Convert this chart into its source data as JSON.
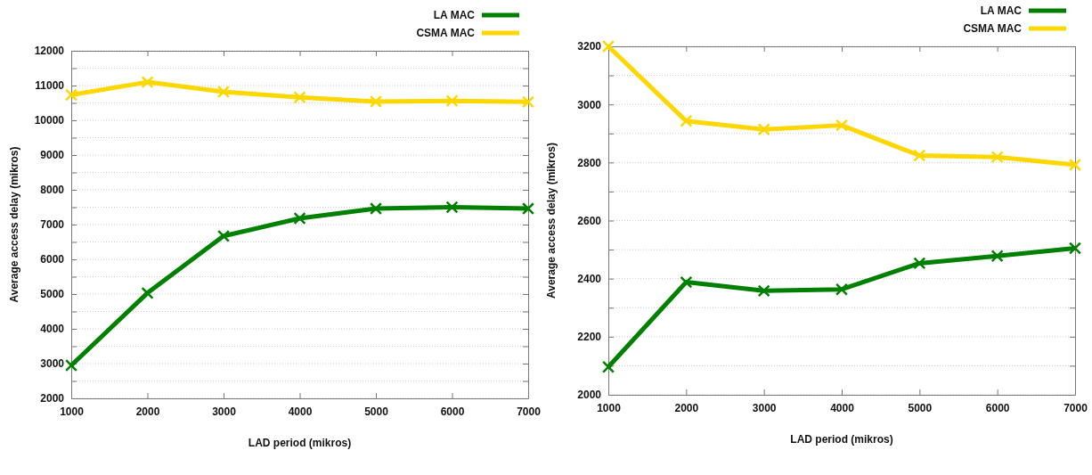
{
  "chart_data": [
    {
      "type": "line",
      "xlabel": "LAD period (mikros)",
      "ylabel": "Average access delay (mikros)",
      "x": [
        1000,
        2000,
        3000,
        4000,
        5000,
        6000,
        7000
      ],
      "xlim": [
        1000,
        7000
      ],
      "xticks": [
        1000,
        2000,
        3000,
        4000,
        5000,
        6000,
        7000
      ],
      "ylim": [
        2000,
        12000
      ],
      "yticks": [
        2000,
        {
          "value": 2500,
          "label": null
        },
        3000,
        {
          "value": 3500,
          "label": null
        },
        4000,
        {
          "value": 4500,
          "label": null
        },
        5000,
        {
          "value": 5500,
          "label": null
        },
        6000,
        {
          "value": 6500,
          "label": null
        },
        7000,
        {
          "value": 7500,
          "label": null
        },
        8000,
        {
          "value": 8500,
          "label": null
        },
        9000,
        {
          "value": 9500,
          "label": null
        },
        10000,
        {
          "value": 10500,
          "label": null
        },
        11000,
        {
          "value": 11500,
          "label": null
        },
        12000
      ],
      "grid": "y",
      "legend": "top right",
      "marker": "cross",
      "line_style": "solid",
      "series": [
        {
          "name": "LA MAC",
          "color": "#008000",
          "values": [
            2950,
            5030,
            6670,
            7180,
            7460,
            7500,
            7460
          ]
        },
        {
          "name": "CSMA MAC",
          "color": "#ffd700",
          "values": [
            10730,
            11100,
            10820,
            10660,
            10540,
            10560,
            10530
          ]
        }
      ]
    },
    {
      "type": "line",
      "xlabel": "LAD period (mikros)",
      "ylabel": "Average access delay (mikros)",
      "x": [
        1000,
        2000,
        3000,
        4000,
        5000,
        6000,
        7000
      ],
      "xlim": [
        1000,
        7000
      ],
      "xticks": [
        1000,
        2000,
        3000,
        4000,
        5000,
        6000,
        7000
      ],
      "ylim": [
        2000,
        3200
      ],
      "yticks": [
        2000,
        {
          "value": 2100,
          "label": null
        },
        2200,
        {
          "value": 2300,
          "label": null
        },
        2400,
        {
          "value": 2500,
          "label": null
        },
        2600,
        {
          "value": 2700,
          "label": null
        },
        2800,
        {
          "value": 2900,
          "label": null
        },
        3000,
        {
          "value": 3100,
          "label": null
        },
        3200
      ],
      "grid": "y",
      "legend": "top right",
      "marker": "cross",
      "line_style": "solid",
      "series": [
        {
          "name": "LA MAC",
          "color": "#008000",
          "values": [
            2096,
            2388,
            2358,
            2363,
            2453,
            2478,
            2505
          ]
        },
        {
          "name": "CSMA MAC",
          "color": "#ffd700",
          "values": [
            3200,
            2943,
            2914,
            2928,
            2824,
            2819,
            2792
          ]
        }
      ]
    }
  ]
}
